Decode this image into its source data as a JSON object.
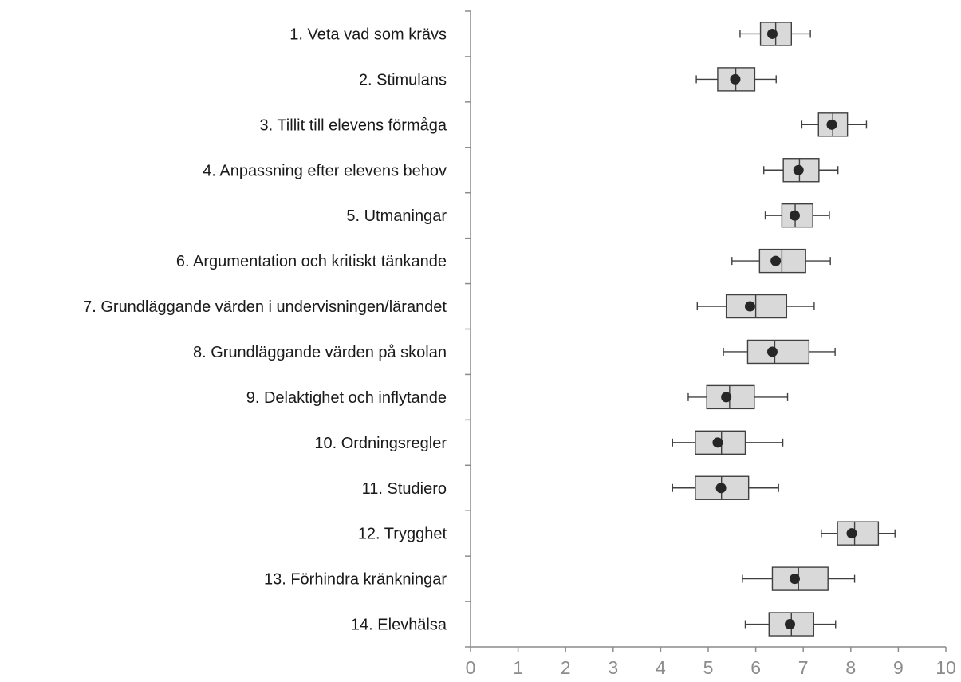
{
  "chart_data": {
    "type": "boxplot",
    "orientation": "horizontal",
    "title": "",
    "xlabel": "",
    "ylabel": "",
    "xlim": [
      0,
      10
    ],
    "x_ticks": [
      "0",
      "1",
      "2",
      "3",
      "4",
      "5",
      "6",
      "7",
      "8",
      "9",
      "10"
    ],
    "grid": false,
    "legend": "none",
    "colors": {
      "box_fill": "#d9d9d9",
      "box_stroke": "#404040",
      "mean_marker": "#262626",
      "axis": "#8c8c8c",
      "tick_label": "#8c8c8c",
      "category_label": "#1a1a1a"
    },
    "categories": [
      "1. Veta vad som krävs",
      "2. Stimulans",
      "3. Tillit till elevens förmåga",
      "4. Anpassning efter elevens behov",
      "5. Utmaningar",
      "6. Argumentation och kritiskt tänkande",
      "7. Grundläggande värden i undervisningen/lärandet",
      "8. Grundläggande värden på skolan",
      "9. Delaktighet och inflytande",
      "10. Ordningsregler",
      "11. Studiero",
      "12. Trygghet",
      "13. Förhindra kränkningar",
      "14. Elevhälsa"
    ],
    "boxes": [
      {
        "whisker_low": 5.67,
        "q1": 6.1,
        "median": 6.42,
        "q3": 6.75,
        "whisker_high": 7.15,
        "mean": 6.35
      },
      {
        "whisker_low": 4.75,
        "q1": 5.2,
        "median": 5.58,
        "q3": 5.98,
        "whisker_high": 6.43,
        "mean": 5.57
      },
      {
        "whisker_low": 6.97,
        "q1": 7.32,
        "median": 7.62,
        "q3": 7.93,
        "whisker_high": 8.33,
        "mean": 7.6
      },
      {
        "whisker_low": 6.17,
        "q1": 6.58,
        "median": 6.92,
        "q3": 7.33,
        "whisker_high": 7.73,
        "mean": 6.9
      },
      {
        "whisker_low": 6.2,
        "q1": 6.55,
        "median": 6.83,
        "q3": 7.2,
        "whisker_high": 7.55,
        "mean": 6.82
      },
      {
        "whisker_low": 5.5,
        "q1": 6.08,
        "median": 6.55,
        "q3": 7.05,
        "whisker_high": 7.57,
        "mean": 6.42
      },
      {
        "whisker_low": 4.77,
        "q1": 5.38,
        "median": 6.0,
        "q3": 6.65,
        "whisker_high": 7.23,
        "mean": 5.88
      },
      {
        "whisker_low": 5.32,
        "q1": 5.83,
        "median": 6.4,
        "q3": 7.12,
        "whisker_high": 7.67,
        "mean": 6.35
      },
      {
        "whisker_low": 4.58,
        "q1": 4.97,
        "median": 5.45,
        "q3": 5.97,
        "whisker_high": 6.67,
        "mean": 5.38
      },
      {
        "whisker_low": 4.25,
        "q1": 4.73,
        "median": 5.28,
        "q3": 5.78,
        "whisker_high": 6.57,
        "mean": 5.2
      },
      {
        "whisker_low": 4.25,
        "q1": 4.73,
        "median": 5.28,
        "q3": 5.85,
        "whisker_high": 6.48,
        "mean": 5.27
      },
      {
        "whisker_low": 7.38,
        "q1": 7.72,
        "median": 8.08,
        "q3": 8.58,
        "whisker_high": 8.93,
        "mean": 8.02
      },
      {
        "whisker_low": 5.72,
        "q1": 6.35,
        "median": 6.9,
        "q3": 7.52,
        "whisker_high": 8.08,
        "mean": 6.82
      },
      {
        "whisker_low": 5.78,
        "q1": 6.28,
        "median": 6.75,
        "q3": 7.22,
        "whisker_high": 7.68,
        "mean": 6.72
      }
    ]
  }
}
